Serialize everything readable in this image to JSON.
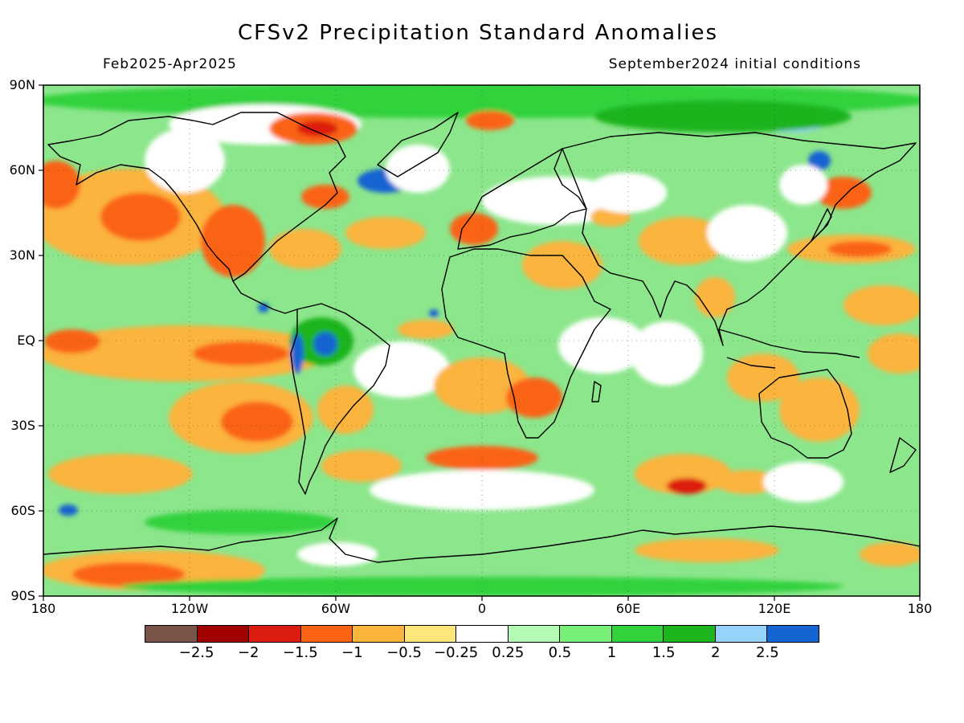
{
  "header": {
    "title": "CFSv2 Precipitation Standard Anomalies",
    "period": "Feb2025-Apr2025",
    "initial_conditions": "September2024 initial conditions"
  },
  "axes": {
    "lat_labels": [
      "90N",
      "60N",
      "30N",
      "EQ",
      "30S",
      "60S",
      "90S"
    ],
    "lon_labels": [
      "180",
      "120W",
      "60W",
      "0",
      "60E",
      "120E",
      "180"
    ]
  },
  "legend": {
    "colors": [
      "#7a5448",
      "#a00000",
      "#dc1e10",
      "#fa6414",
      "#fbb43c",
      "#fde67a",
      "#ffffff",
      "#b4fab4",
      "#78f078",
      "#32d23c",
      "#1eb41e",
      "#96d2fa",
      "#1464d2"
    ],
    "labels": [
      "−2.5",
      "−2",
      "−1.5",
      "−1",
      "−0.5",
      "−0.25",
      "0.25",
      "0.5",
      "1",
      "1.5",
      "2",
      "2.5"
    ]
  },
  "colors": {
    "ocean_base": "#8ce68c",
    "dry_moderate": "#fbb43c",
    "dry_strong": "#fa6414",
    "dry_severe": "#dc1e10",
    "wet_moderate": "#32d23c",
    "wet_strong": "#1eb41e",
    "wet_extreme": "#1464d2",
    "neutral": "#ffffff"
  }
}
